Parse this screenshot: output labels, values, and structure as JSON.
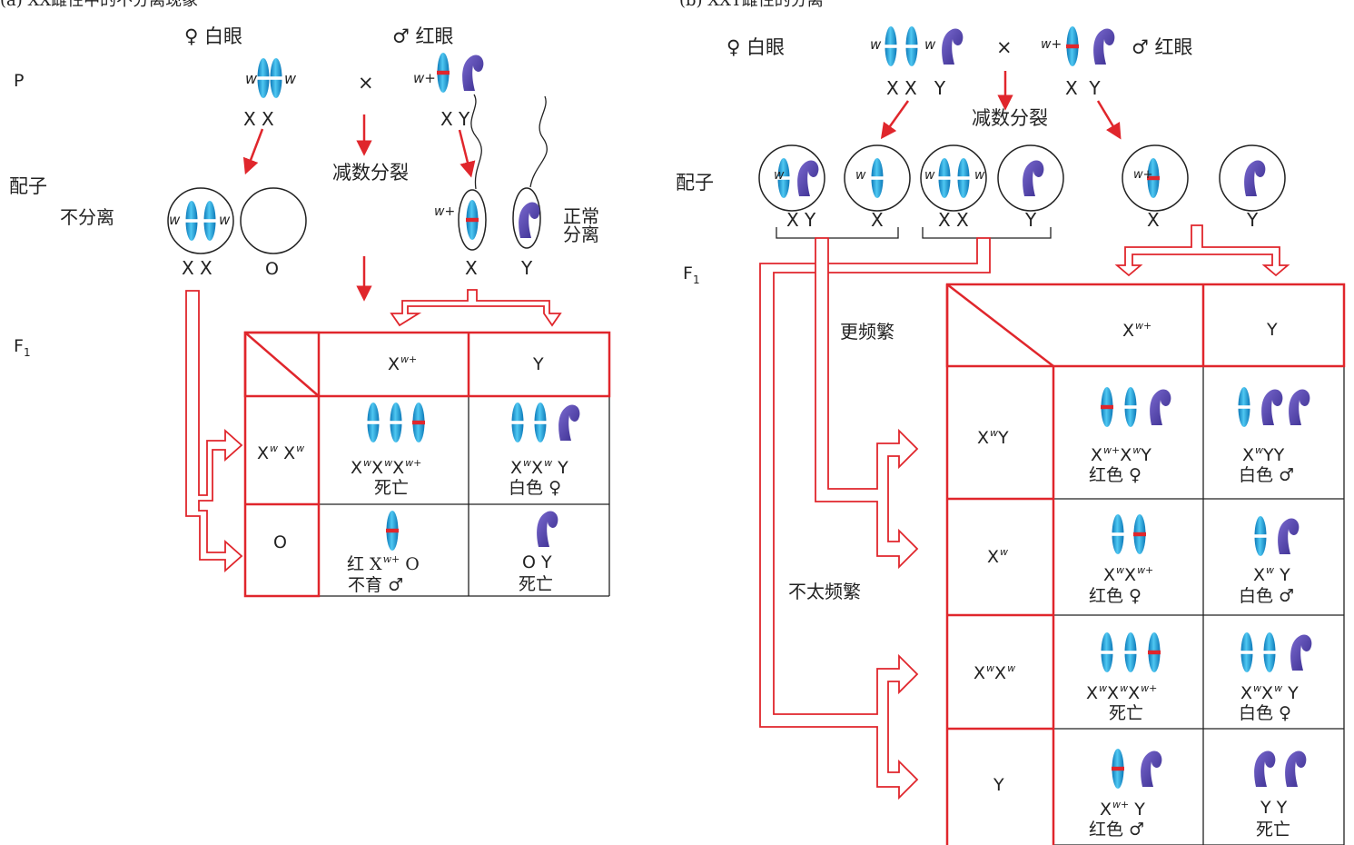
{
  "a": {
    "title": "(a) XX雌性中的不分离现象",
    "female_label": "♀ 白眼",
    "male_label": "♂ 红眼",
    "gen_p": "P",
    "gen_gamete": "配子",
    "gen_f1": "F",
    "gen_f1_sub": "1",
    "cross": "×",
    "meiosis": "减数分裂",
    "nondisjunction": "不分离",
    "normal_sep": "正常\n分离",
    "allele_w": "w",
    "allele_wplus": "w+",
    "p_female": "X X",
    "p_male": "X Y",
    "gamete_xx": "X X",
    "gamete_o": "O",
    "gamete_x": "X",
    "gamete_y": "Y",
    "col1": "X",
    "col1_sup": "w+",
    "col2": "Y",
    "row1_sup": "w",
    "row2": "O",
    "c11_sex": "死亡",
    "c12_phen": "白色",
    "c12_sex": "♀",
    "c21_a": "红 X",
    "c21_sup": "w+",
    "c21_b": "O",
    "c21_c": "不育",
    "c21_sex": "♂",
    "c22_a": "O Y",
    "c22_b": "死亡"
  },
  "b": {
    "title": "(b) XXY雌性的分离",
    "female_label": "♀ 白眼",
    "male_label": "♂ 红眼",
    "cross": "×",
    "meiosis": "减数分裂",
    "gen_gamete": "配子",
    "gen_f1": "F",
    "gen_f1_sub": "1",
    "more_freq": "更频繁",
    "less_freq": "不太频繁",
    "p_female": "X X   Y",
    "p_male": "X  Y",
    "g1": "X Y",
    "g2": "X",
    "g3": "X X",
    "g4": "Y",
    "g5": "X",
    "g6": "Y",
    "col2": "Y",
    "row4": "Y",
    "r1_c1_phen": "红色 ♀",
    "r1_c2_phen": "白色 ♂",
    "r2_c1_phen": "红色 ♀",
    "r2_c2_phen": "白色 ♂",
    "r3_c1_phen": "死亡",
    "r3_c2_phen": "白色 ♀",
    "r4_c1_phen": "红色 ♂",
    "r4_c2_a": "Y Y",
    "r4_c2_b": "死亡"
  },
  "colors": {
    "red": "#e0262c",
    "blue_chrom": "#1aa0dc",
    "y_chrom": "#4a3ea0"
  }
}
